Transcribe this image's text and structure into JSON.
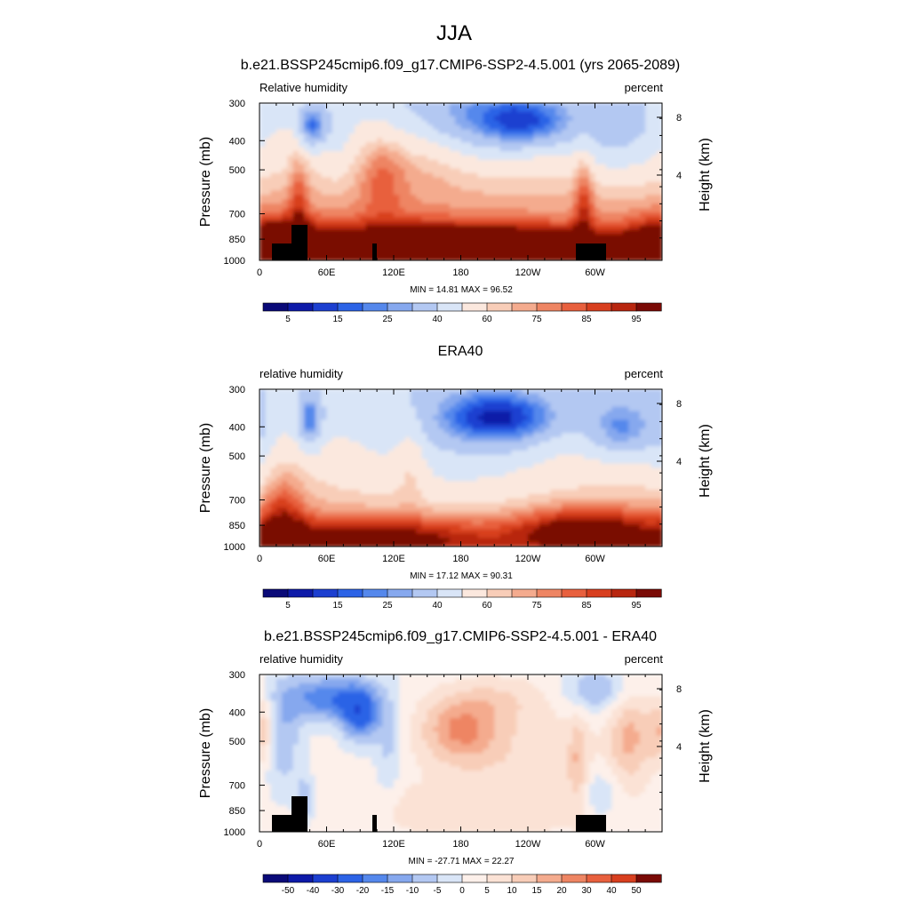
{
  "figure": {
    "title": "JJA"
  },
  "chart_data": [
    {
      "type": "heatmap",
      "title": "b.e21.BSSP245cmip6.f09_g17.CMIP6-SSP2-4.5.001 (yrs 2065-2089)",
      "left_label": "Relative humidity",
      "right_label": "percent",
      "ylabel": "Pressure (mb)",
      "y2label": "Height (km)",
      "x_ticks": [
        "0",
        "60E",
        "120E",
        "180",
        "120W",
        "60W"
      ],
      "x_tick_values": [
        0,
        60,
        120,
        180,
        240,
        300
      ],
      "xlim": [
        0,
        360
      ],
      "y_ticks": [
        "300",
        "400",
        "500",
        "700",
        "850",
        "1000"
      ],
      "y_tick_values": [
        300,
        400,
        500,
        700,
        850,
        1000
      ],
      "ylim": [
        1000,
        300
      ],
      "y_scale": "log",
      "y2_ticks": [
        "4",
        "8"
      ],
      "stats": "MIN =  14.81  MAX =  96.52",
      "colorbar_labels": [
        "5",
        "15",
        "25",
        "40",
        "60",
        "75",
        "85",
        "95"
      ],
      "terrain": true
    },
    {
      "type": "heatmap",
      "title": "ERA40",
      "left_label": "relative humidity",
      "right_label": "percent",
      "ylabel": "Pressure (mb)",
      "y2label": "Height (km)",
      "x_ticks": [
        "0",
        "60E",
        "120E",
        "180",
        "120W",
        "60W"
      ],
      "x_tick_values": [
        0,
        60,
        120,
        180,
        240,
        300
      ],
      "xlim": [
        0,
        360
      ],
      "y_ticks": [
        "300",
        "400",
        "500",
        "700",
        "850",
        "1000"
      ],
      "y_tick_values": [
        300,
        400,
        500,
        700,
        850,
        1000
      ],
      "ylim": [
        1000,
        300
      ],
      "y_scale": "log",
      "y2_ticks": [
        "4",
        "8"
      ],
      "stats": "MIN =  17.12  MAX =  90.31",
      "colorbar_labels": [
        "5",
        "15",
        "25",
        "40",
        "60",
        "75",
        "85",
        "95"
      ],
      "terrain": false
    },
    {
      "type": "heatmap",
      "title": "b.e21.BSSP245cmip6.f09_g17.CMIP6-SSP2-4.5.001 - ERA40",
      "left_label": "relative humidity",
      "right_label": "percent",
      "ylabel": "Pressure (mb)",
      "y2label": "Height (km)",
      "x_ticks": [
        "0",
        "60E",
        "120E",
        "180",
        "120W",
        "60W"
      ],
      "x_tick_values": [
        0,
        60,
        120,
        180,
        240,
        300
      ],
      "xlim": [
        0,
        360
      ],
      "y_ticks": [
        "300",
        "400",
        "500",
        "700",
        "850",
        "1000"
      ],
      "y_tick_values": [
        300,
        400,
        500,
        700,
        850,
        1000
      ],
      "ylim": [
        1000,
        300
      ],
      "y_scale": "log",
      "y2_ticks": [
        "4",
        "8"
      ],
      "stats": "MIN = -27.71  MAX =  22.27",
      "colorbar_labels": [
        "-50",
        "-40",
        "-30",
        "-20",
        "-15",
        "-10",
        "-5",
        "0",
        "5",
        "10",
        "15",
        "20",
        "30",
        "40",
        "50"
      ],
      "terrain": true
    }
  ],
  "colors": {
    "abs_scale": [
      "#0a0a78",
      "#0d1aa8",
      "#1c3fd0",
      "#2c63e6",
      "#5588ec",
      "#86a8ee",
      "#b3c8f2",
      "#d9e5f7",
      "#fbe8de",
      "#f8cdb8",
      "#f4ab8e",
      "#ee8563",
      "#e8603e",
      "#d83f1f",
      "#b8260f",
      "#7a0a06"
    ],
    "diff_scale": [
      "#0a0a78",
      "#0d1aa8",
      "#1c3fd0",
      "#2c63e6",
      "#5588ec",
      "#86a8ee",
      "#b3c8f2",
      "#d9e5f7",
      "#fdf0ea",
      "#fbe2d5",
      "#f8cdb8",
      "#f4ab8e",
      "#ee8563",
      "#e8603e",
      "#d83f1f",
      "#7a0a06"
    ],
    "terrain": "#000000"
  }
}
